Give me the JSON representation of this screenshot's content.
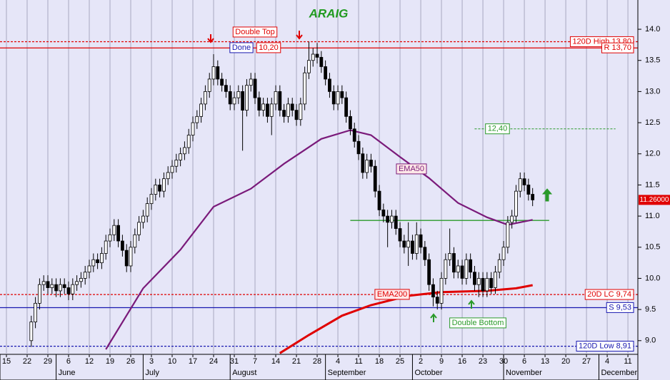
{
  "chart_data": {
    "type": "candlestick",
    "title": "ARAIG",
    "x": [
      6,
      7,
      8,
      9,
      10,
      11,
      12,
      13,
      14,
      15,
      16,
      17,
      18,
      19,
      20,
      21,
      22,
      23,
      24,
      25,
      26,
      27,
      28,
      29,
      30,
      31,
      32,
      33,
      34,
      35,
      36,
      37,
      38,
      39,
      40,
      41,
      42,
      43,
      44,
      45,
      46,
      47,
      48,
      49,
      50,
      51,
      52,
      53,
      54,
      55,
      56,
      57,
      58,
      59,
      60,
      61,
      62,
      63,
      64,
      65,
      66,
      67,
      68,
      69,
      70,
      71,
      72,
      73,
      74,
      75,
      76,
      77,
      78,
      79,
      80,
      81,
      82,
      83,
      84,
      85,
      86,
      87,
      88,
      89,
      90,
      91,
      92,
      93,
      94,
      95,
      96,
      97,
      98,
      99,
      100,
      101,
      102,
      103,
      104,
      105,
      106,
      107,
      108,
      109,
      110,
      111,
      112,
      113,
      114,
      115,
      116,
      117,
      118,
      119,
      120,
      121,
      122,
      123,
      124,
      125,
      126,
      127
    ],
    "open": [
      9.0,
      9.3,
      9.6,
      9.9,
      9.95,
      9.85,
      9.9,
      9.8,
      9.9,
      9.85,
      9.75,
      9.9,
      9.95,
      10.0,
      10.1,
      10.2,
      10.3,
      10.25,
      10.4,
      10.6,
      10.7,
      10.85,
      10.6,
      10.45,
      10.2,
      10.5,
      10.7,
      10.9,
      11.0,
      11.2,
      11.35,
      11.5,
      11.4,
      11.6,
      11.7,
      11.8,
      11.9,
      12.0,
      12.1,
      12.3,
      12.5,
      12.6,
      12.8,
      13.0,
      13.2,
      13.4,
      13.2,
      13.1,
      13.0,
      12.8,
      12.9,
      13.0,
      12.7,
      13.1,
      13.2,
      12.9,
      12.7,
      12.8,
      12.6,
      12.8,
      13.0,
      12.7,
      12.6,
      12.8,
      12.7,
      12.55,
      12.8,
      13.3,
      13.5,
      13.6,
      13.55,
      13.4,
      13.2,
      13.0,
      12.8,
      13.0,
      12.9,
      12.6,
      12.4,
      12.2,
      12.0,
      11.7,
      11.9,
      11.8,
      11.4,
      11.1,
      11.0,
      10.9,
      11.0,
      10.8,
      10.6,
      10.5,
      10.6,
      10.4,
      10.7,
      10.5,
      10.3,
      9.9,
      9.7,
      9.6,
      10.0,
      10.3,
      10.4,
      10.1,
      10.2,
      10.0,
      10.3,
      10.1,
      9.9,
      10.0,
      9.8,
      10.0,
      9.85,
      10.1,
      10.3,
      10.5,
      10.9,
      11.0,
      11.4,
      11.6,
      11.5,
      11.35
    ],
    "high": [
      9.4,
      9.7,
      10.0,
      10.05,
      10.05,
      10.0,
      10.0,
      10.0,
      10.0,
      9.95,
      10.0,
      10.05,
      10.1,
      10.2,
      10.3,
      10.4,
      10.4,
      10.5,
      10.7,
      10.8,
      10.95,
      10.95,
      10.7,
      10.55,
      10.6,
      10.8,
      11.0,
      11.1,
      11.3,
      11.45,
      11.6,
      11.6,
      11.7,
      11.8,
      11.9,
      12.0,
      12.1,
      12.2,
      12.4,
      12.6,
      12.7,
      12.9,
      13.1,
      13.3,
      13.6,
      13.5,
      13.3,
      13.2,
      13.1,
      13.0,
      13.1,
      13.1,
      13.2,
      13.3,
      13.3,
      13.0,
      12.9,
      12.9,
      12.9,
      13.1,
      13.1,
      12.8,
      12.9,
      12.9,
      12.8,
      12.9,
      13.4,
      13.8,
      13.7,
      13.78,
      13.65,
      13.5,
      13.3,
      13.1,
      13.1,
      13.1,
      13.0,
      12.7,
      12.5,
      12.3,
      12.1,
      12.0,
      12.0,
      11.9,
      11.5,
      11.2,
      11.1,
      11.1,
      11.1,
      10.9,
      10.7,
      10.9,
      10.7,
      10.9,
      10.8,
      10.6,
      10.4,
      10.0,
      9.8,
      10.1,
      10.4,
      10.8,
      10.5,
      10.3,
      10.3,
      10.4,
      10.4,
      10.2,
      10.1,
      10.1,
      10.1,
      10.1,
      10.2,
      10.4,
      10.6,
      11.0,
      11.1,
      11.5,
      11.7,
      11.7,
      11.6,
      11.45
    ],
    "low": [
      8.9,
      9.2,
      9.5,
      9.8,
      9.75,
      9.75,
      9.7,
      9.7,
      9.75,
      9.65,
      9.65,
      9.8,
      9.85,
      9.9,
      10.0,
      10.1,
      10.15,
      10.15,
      10.3,
      10.5,
      10.6,
      10.5,
      10.35,
      10.1,
      10.1,
      10.4,
      10.6,
      10.8,
      10.9,
      11.1,
      11.25,
      11.3,
      11.3,
      11.5,
      11.6,
      11.7,
      11.8,
      11.9,
      12.0,
      12.2,
      12.4,
      12.5,
      12.7,
      12.9,
      13.1,
      13.1,
      13.0,
      12.9,
      12.7,
      12.7,
      12.8,
      12.05,
      12.6,
      13.0,
      12.8,
      12.6,
      12.6,
      12.5,
      12.3,
      12.7,
      12.6,
      12.5,
      12.5,
      12.6,
      12.45,
      12.45,
      12.7,
      13.2,
      13.4,
      13.45,
      13.3,
      13.1,
      12.9,
      12.7,
      12.7,
      12.8,
      12.5,
      12.3,
      12.1,
      11.9,
      11.6,
      11.6,
      11.7,
      11.3,
      11.0,
      10.9,
      10.5,
      10.8,
      10.7,
      10.5,
      10.4,
      10.2,
      10.3,
      10.3,
      10.4,
      10.2,
      9.8,
      9.55,
      9.5,
      9.5,
      9.9,
      10.2,
      10.0,
      10.0,
      9.9,
      9.9,
      10.0,
      9.8,
      9.7,
      9.7,
      9.7,
      9.75,
      9.75,
      10.0,
      10.2,
      10.4,
      10.8,
      10.9,
      11.3,
      11.4,
      11.25,
      11.16
    ],
    "close": [
      9.3,
      9.6,
      9.9,
      9.95,
      9.85,
      9.9,
      9.8,
      9.9,
      9.85,
      9.75,
      9.9,
      9.95,
      10.0,
      10.1,
      10.2,
      10.3,
      10.25,
      10.4,
      10.6,
      10.7,
      10.85,
      10.6,
      10.45,
      10.2,
      10.5,
      10.7,
      10.9,
      11.0,
      11.2,
      11.35,
      11.5,
      11.4,
      11.6,
      11.7,
      11.8,
      11.9,
      12.0,
      12.1,
      12.3,
      12.5,
      12.6,
      12.8,
      13.0,
      13.2,
      13.4,
      13.2,
      13.1,
      13.0,
      12.8,
      12.9,
      13.0,
      12.7,
      13.1,
      13.2,
      12.9,
      12.7,
      12.8,
      12.6,
      12.8,
      13.0,
      12.7,
      12.6,
      12.8,
      12.7,
      12.55,
      12.8,
      13.3,
      13.5,
      13.6,
      13.55,
      13.4,
      13.2,
      13.0,
      12.8,
      13.0,
      12.9,
      12.6,
      12.4,
      12.2,
      12.0,
      11.7,
      11.9,
      11.8,
      11.4,
      11.1,
      11.0,
      10.9,
      11.0,
      10.8,
      10.6,
      10.5,
      10.6,
      10.4,
      10.7,
      10.5,
      10.3,
      9.9,
      9.7,
      9.6,
      10.0,
      10.3,
      10.4,
      10.1,
      10.2,
      10.0,
      10.3,
      10.1,
      9.9,
      10.0,
      9.8,
      10.0,
      9.85,
      10.1,
      10.3,
      10.5,
      10.9,
      11.0,
      11.4,
      11.6,
      11.5,
      11.35,
      11.26
    ],
    "xlim": [
      -1.55,
      152.4
    ],
    "xticks": [
      {
        "value": 0,
        "label": "15"
      },
      {
        "value": 5,
        "label": "22"
      },
      {
        "value": 10,
        "label": "29"
      },
      {
        "value": 15,
        "label": "6"
      },
      {
        "value": 20,
        "label": "12"
      },
      {
        "value": 25,
        "label": "19"
      },
      {
        "value": 30,
        "label": "26"
      },
      {
        "value": 35,
        "label": "3"
      },
      {
        "value": 40,
        "label": "10"
      },
      {
        "value": 45,
        "label": "17"
      },
      {
        "value": 50,
        "label": "24"
      },
      {
        "value": 55,
        "label": "31"
      },
      {
        "value": 60,
        "label": "7"
      },
      {
        "value": 65,
        "label": "14"
      },
      {
        "value": 70,
        "label": "21"
      },
      {
        "value": 75,
        "label": "28"
      },
      {
        "value": 80,
        "label": "4"
      },
      {
        "value": 85,
        "label": "11"
      },
      {
        "value": 90,
        "label": "18"
      },
      {
        "value": 95,
        "label": "25"
      },
      {
        "value": 100,
        "label": "2"
      },
      {
        "value": 105,
        "label": "9"
      },
      {
        "value": 110,
        "label": "16"
      },
      {
        "value": 115,
        "label": "23"
      },
      {
        "value": 120,
        "label": "30"
      },
      {
        "value": 125,
        "label": "6"
      },
      {
        "value": 130,
        "label": "13"
      },
      {
        "value": 135,
        "label": "20"
      },
      {
        "value": 140,
        "label": "27"
      },
      {
        "value": 145,
        "label": "4"
      },
      {
        "value": 150,
        "label": "11"
      }
    ],
    "months": [
      {
        "value": 12,
        "label": "June"
      },
      {
        "value": 33,
        "label": "July"
      },
      {
        "value": 54,
        "label": "August"
      },
      {
        "value": 77,
        "label": "September"
      },
      {
        "value": 98,
        "label": "October"
      },
      {
        "value": 120,
        "label": "November"
      },
      {
        "value": 143,
        "label": "December"
      }
    ],
    "ylim": [
      8.78,
      14.47
    ],
    "yticks": [
      {
        "value": 9,
        "label": "9.0"
      },
      9.5,
      {
        "value": 10,
        "label": "10.0"
      },
      10.5,
      {
        "value": 11,
        "label": "11.0"
      },
      11.5,
      {
        "value": 12,
        "label": "12.0"
      },
      12.5,
      {
        "value": 13,
        "label": "13.0"
      },
      13.5,
      {
        "value": 14,
        "label": "14.0"
      }
    ],
    "grid": true,
    "up_color": "#ffffff",
    "down_color": "#000000",
    "series": [
      {
        "name": "EMA50",
        "color": "#7a1a7a",
        "x": [
          24,
          33,
          42,
          50,
          59,
          67,
          76,
          83,
          88,
          95,
          102,
          109,
          116,
          121,
          127
        ],
        "values": [
          8.86,
          9.84,
          10.46,
          11.15,
          11.44,
          11.84,
          12.24,
          12.38,
          12.3,
          11.95,
          11.61,
          11.21,
          10.98,
          10.86,
          10.94
        ]
      },
      {
        "name": "EMA200",
        "color": "#e00000",
        "x": [
          66,
          73,
          81,
          88,
          97,
          105,
          116,
          123,
          127
        ],
        "values": [
          8.8,
          9.09,
          9.4,
          9.57,
          9.72,
          9.78,
          9.8,
          9.84,
          9.89
        ]
      }
    ],
    "levels": [
      {
        "value": 13.8,
        "label": "120D High 13,80",
        "color": "#e00000",
        "dash": true
      },
      {
        "value": 13.7,
        "label": "R 13,70",
        "color": "#e00000",
        "dash": false
      },
      {
        "value": 9.74,
        "label": "20D LC 9,74",
        "color": "#e00000",
        "dash": true
      },
      {
        "value": 9.53,
        "label": "S 9,53",
        "color": "#1818b0",
        "dash": false
      },
      {
        "value": 8.91,
        "label": "120D Low 8,91",
        "color": "#1818b0",
        "dash": true
      }
    ],
    "target": {
      "value": 12.4,
      "label": "12,40",
      "x": [
        113,
        147
      ],
      "color": "#2a9a2a"
    },
    "support": {
      "value": 10.93,
      "x": [
        83,
        131
      ],
      "color": "#2a9a2a"
    },
    "last_price": {
      "value": 11.26,
      "label": "11.26000",
      "color": "#e00000"
    },
    "annotations": {
      "double_top": "Double Top",
      "done": "Done",
      "value_box": "10,20",
      "double_bottom": "Double Bottom"
    }
  }
}
